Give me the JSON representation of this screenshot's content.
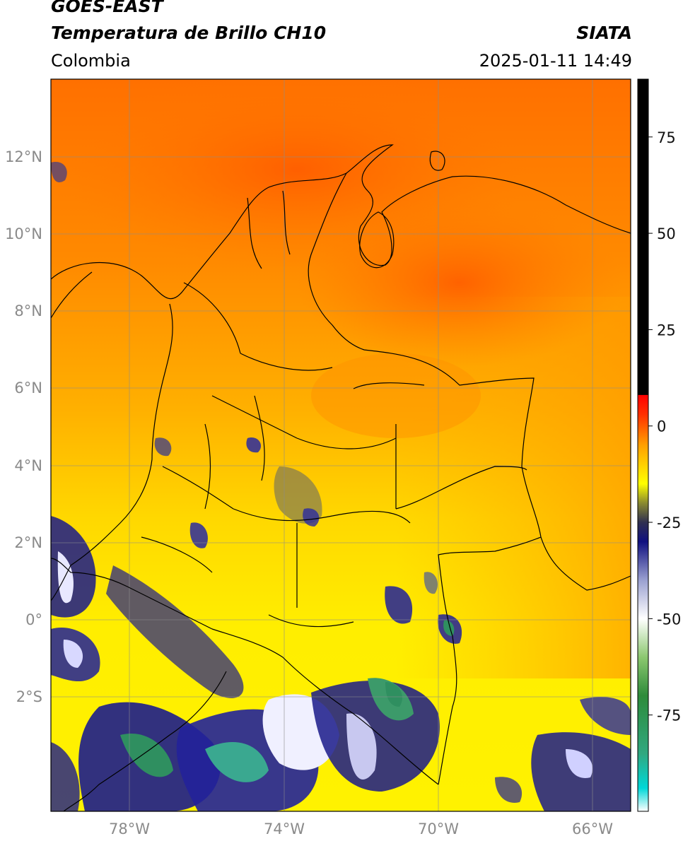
{
  "header": {
    "satellite": "GOES-EAST",
    "product": "Temperatura de Brillo CH10",
    "region": "Colombia",
    "organization": "SIATA",
    "datetime": "2025-01-11 14:49"
  },
  "map": {
    "lon_range": [
      -80.0,
      -64.8
    ],
    "lat_range": [
      -5.0,
      14.0
    ],
    "lat_ticks": [
      "12°N",
      "10°N",
      "8°N",
      "6°N",
      "4°N",
      "2°N",
      "0°",
      "2°S"
    ],
    "lon_ticks": [
      "78°W",
      "74°W",
      "70°W",
      "66°W"
    ],
    "grid": true
  },
  "colorbar": {
    "range": [
      -100,
      90
    ],
    "ticks": [
      "75",
      "50",
      "25",
      "0",
      "-25",
      "-50",
      "-75"
    ],
    "stops": [
      {
        "value": -100,
        "color": "#ffffff"
      },
      {
        "value": -94,
        "color": "#00d8d8"
      },
      {
        "value": -85,
        "color": "#30a880"
      },
      {
        "value": -70,
        "color": "#2e8b3a"
      },
      {
        "value": -60,
        "color": "#8cc870"
      },
      {
        "value": -50,
        "color": "#ffffff"
      },
      {
        "value": -40,
        "color": "#9aa0d0"
      },
      {
        "value": -30,
        "color": "#101080"
      },
      {
        "value": -25,
        "color": "#303050"
      },
      {
        "value": -20,
        "color": "#8a8a30"
      },
      {
        "value": -15,
        "color": "#ffff00"
      },
      {
        "value": -5,
        "color": "#ffa000"
      },
      {
        "value": 3,
        "color": "#ff3000"
      },
      {
        "value": 8,
        "color": "#ff0000"
      },
      {
        "value": 8.1,
        "color": "#000000"
      },
      {
        "value": 90,
        "color": "#000000"
      }
    ]
  }
}
